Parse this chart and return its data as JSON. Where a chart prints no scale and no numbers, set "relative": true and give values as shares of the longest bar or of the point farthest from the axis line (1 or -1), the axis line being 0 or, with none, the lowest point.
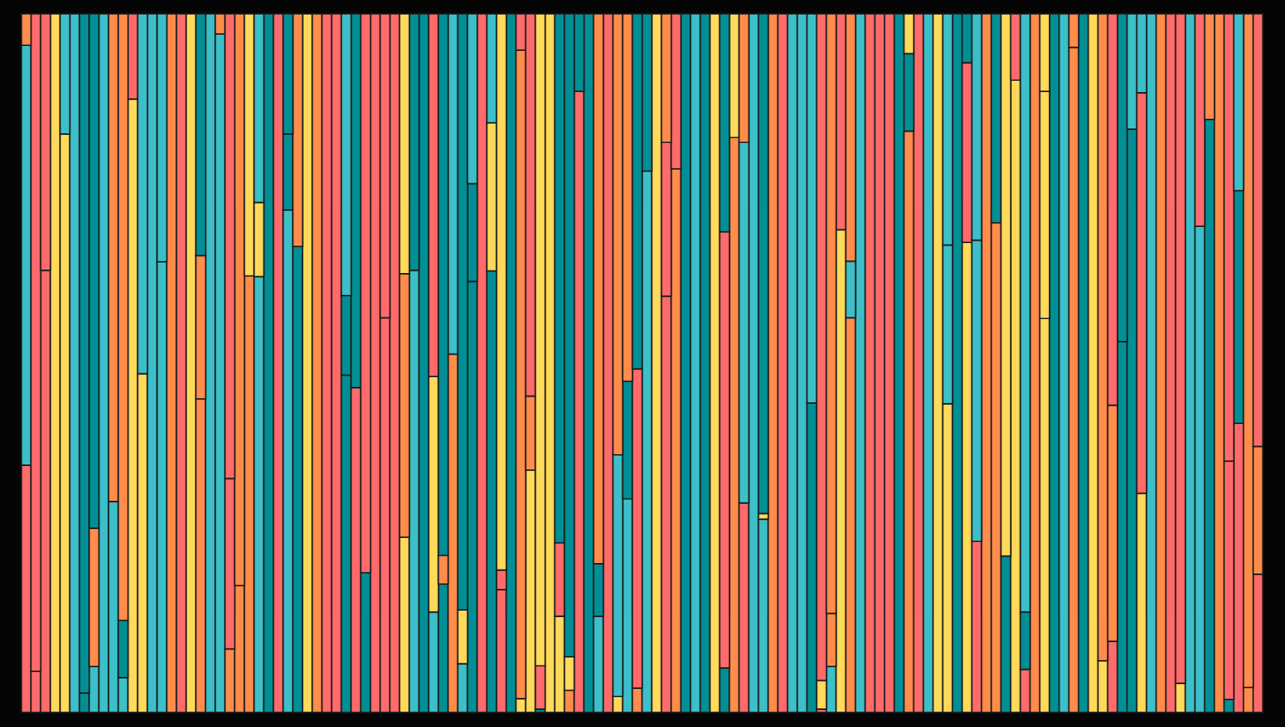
{
  "chart_data": {
    "type": "bar",
    "stacked": true,
    "relative": true,
    "categories": [
      null,
      null,
      null,
      null,
      null,
      null,
      null,
      null,
      null,
      null,
      null,
      null,
      null,
      null,
      null,
      null,
      null,
      null,
      null,
      null,
      null,
      null,
      null,
      null,
      null,
      null,
      null,
      null,
      null,
      null,
      null,
      null,
      null,
      null,
      null,
      null,
      null,
      null,
      null,
      null,
      null,
      null,
      null,
      null,
      null,
      null,
      null,
      null,
      null,
      null,
      null,
      null,
      null,
      null,
      null,
      null,
      null,
      null,
      null,
      null,
      null,
      null,
      null,
      null,
      null,
      null,
      null,
      null,
      null,
      null,
      null,
      null,
      null,
      null,
      null,
      null,
      null,
      null,
      null,
      null,
      null,
      null,
      null,
      null,
      null,
      null,
      null,
      null,
      null,
      null,
      null,
      null,
      null,
      null,
      null,
      null,
      null,
      null,
      null,
      null,
      null,
      null,
      null,
      null,
      null,
      null,
      null,
      null,
      null,
      null,
      null,
      null,
      null,
      null,
      null,
      null,
      null,
      null,
      null,
      null,
      null,
      null,
      null,
      null,
      null,
      null,
      null,
      null
    ],
    "series": [
      {
        "values": [
          0.354,
          0.059,
          0.633,
          1,
          0.828,
          1,
          0.028,
          0.066,
          1,
          0.302,
          0.05,
          0.878,
          0.485,
          1,
          0.645,
          1,
          1,
          1,
          0.449,
          1,
          0.971,
          0.091,
          0.182,
          0.625,
          0.624,
          1,
          1,
          0.719,
          0.667,
          1,
          1,
          1,
          1,
          0.483,
          0.465,
          0.2,
          1,
          0.565,
          1,
          0.251,
          0.633,
          1,
          0.144,
          0.184,
          0.513,
          0.07,
          0.617,
          1,
          0.632,
          0.176,
          1,
          0.02,
          0.347,
          0.005,
          1,
          0.138,
          0.032,
          0.889,
          1,
          0.138,
          1,
          0.023,
          0.306,
          0.035,
          0.775,
          1,
          0.596,
          0.778,
          1,
          1,
          1,
          1,
          0.064,
          0.823,
          0.3,
          1,
          0.277,
          1,
          1,
          1,
          1,
          0.443,
          0.005,
          0.066,
          0.691,
          0.565,
          1,
          1,
          1,
          1,
          1,
          0.832,
          1,
          1,
          1,
          0.442,
          1,
          0.673,
          0.245,
          1,
          0.701,
          0.224,
          0.905,
          0.062,
          1,
          0.564,
          1,
          1,
          0.952,
          1,
          1,
          0.074,
          0.102,
          0.531,
          0.835,
          0.314,
          1,
          1,
          1,
          0.042,
          1,
          0.696,
          0.849,
          1,
          0.019,
          0.414,
          0.036,
          0.198
        ],
        "colors": [
          "#ff6b6b",
          "#ff6b6b",
          "#ff6b6b",
          "#ffd95a",
          "#ffd95a",
          "#3cbfc8",
          "#018f95",
          "#3cbfc8",
          "#3cbfc8",
          "#3cbfc8",
          "#3cbfc8",
          "#ffd95a",
          "#ffd95a",
          "#3cbfc8",
          "#3cbfc8",
          "#ff8c4b",
          "#ff6b6b",
          "#ffd95a",
          "#ff8c4b",
          "#3cbfc8",
          "#3cbfc8",
          "#ff8c4b",
          "#ff8c4b",
          "#ff8c4b",
          "#3cbfc8",
          "#018f95",
          "#ff6b6b",
          "#3cbfc8",
          "#018f95",
          "#ffd95a",
          "#ff8c4b",
          "#ff6b6b",
          "#ff6b6b",
          "#018f95",
          "#ff6b6b",
          "#018f95",
          "#ff6b6b",
          "#ff6b6b",
          "#ff6b6b",
          "#ffd95a",
          "#3cbfc8",
          "#018f95",
          "#3cbfc8",
          "#018f95",
          "#ff8c4b",
          "#3cbfc8",
          "#018f95",
          "#ff6b6b",
          "#018f95",
          "#ff6b6b",
          "#018f95",
          "#ffd95a",
          "#ffd95a",
          "#018f95",
          "#ffd95a",
          "#ffd95a",
          "#ff8c4b",
          "#ff6b6b",
          "#018f95",
          "#3cbfc8",
          "#ff6b6b",
          "#ffd95a",
          "#3cbfc8",
          "#ff8c4b",
          "#3cbfc8",
          "#ffd95a",
          "#ff6b6b",
          "#ff8c4b",
          "#018f95",
          "#3cbfc8",
          "#018f95",
          "#ffd95a",
          "#018f95",
          "#ff8c4b",
          "#ff6b6b",
          "#3cbfc8",
          "#3cbfc8",
          "#ff8c4b",
          "#ff6b6b",
          "#3cbfc8",
          "#3cbfc8",
          "#018f95",
          "#ff6b6b",
          "#3cbfc8",
          "#ffd95a",
          "#ff8c4b",
          "#3cbfc8",
          "#ff6b6b",
          "#ff6b6b",
          "#ff6b6b",
          "#018f95",
          "#ff8c4b",
          "#ff6b6b",
          "#3cbfc8",
          "#ffd95a",
          "#ffd95a",
          "#018f95",
          "#ffd95a",
          "#ff6b6b",
          "#ff8c4b",
          "#ff8c4b",
          "#018f95",
          "#ffd95a",
          "#ff6b6b",
          "#ff8c4b",
          "#ffd95a",
          "#018f95",
          "#3cbfc8",
          "#ff8c4b",
          "#018f95",
          "#ffd95a",
          "#ffd95a",
          "#ff6b6b",
          "#018f95",
          "#018f95",
          "#ffd95a",
          "#3cbfc8",
          "#ff8c4b",
          "#ff6b6b",
          "#ffd95a",
          "#3cbfc8",
          "#3cbfc8",
          "#018f95",
          "#ff8c4b",
          "#018f95",
          "#ff6b6b",
          "#ff8c4b",
          "#ff6b6b"
        ]
      },
      {
        "values": [
          0.601,
          0.941,
          0.367,
          null,
          0.172,
          null,
          0.972,
          0.198,
          null,
          0.698,
          0.082,
          0.122,
          0.515,
          null,
          0.355,
          null,
          null,
          null,
          0.205,
          null,
          0.029,
          0.244,
          0.818,
          0.375,
          0.106,
          null,
          null,
          0.109,
          0.333,
          null,
          null,
          null,
          null,
          0.114,
          0.535,
          0.8,
          null,
          0.435,
          null,
          0.377,
          0.367,
          null,
          0.337,
          0.041,
          0.487,
          0.077,
          0.14,
          null,
          0.212,
          0.028,
          null,
          0.928,
          0.106,
          0.062,
          null,
          0.105,
          0.048,
          0.111,
          null,
          0.075,
          null,
          0.346,
          0.168,
          0.457,
          0.225,
          null,
          0.22,
          0.222,
          null,
          null,
          null,
          null,
          0.624,
          0.177,
          0.516,
          null,
          0.008,
          null,
          null,
          null,
          null,
          0.557,
          0.041,
          0.076,
          0.309,
          0.081,
          null,
          null,
          null,
          null,
          null,
          0.111,
          null,
          null,
          null,
          0.227,
          null,
          0.257,
          0.431,
          null,
          0.299,
          0.776,
          0.095,
          0.082,
          null,
          0.325,
          null,
          null,
          0.048,
          null,
          null,
          0.926,
          0.338,
          0.469,
          0.165,
          0.573,
          null,
          null,
          null,
          0.958,
          null,
          0.304,
          0.151,
          null,
          0.341,
          0.333,
          0.964,
          0.183
        ],
        "colors": [
          "#3cbfc8",
          "#ff6b6b",
          "#ff6b6b",
          null,
          "#3cbfc8",
          null,
          "#018f95",
          "#ff8c4b",
          null,
          "#ff8c4b",
          "#018f95",
          "#ff6b6b",
          "#3cbfc8",
          null,
          "#3cbfc8",
          null,
          null,
          null,
          "#ff8c4b",
          null,
          "#ff8c4b",
          "#ff6b6b",
          "#ff8c4b",
          "#ffd95a",
          "#ffd95a",
          null,
          null,
          "#018f95",
          "#ff8c4b",
          null,
          null,
          null,
          null,
          "#018f95",
          "#018f95",
          "#ff6b6b",
          null,
          "#ff6b6b",
          null,
          "#ff8c4b",
          "#018f95",
          null,
          "#ffd95a",
          "#ff8c4b",
          "#3cbfc8",
          "#ffd95a",
          "#018f95",
          null,
          "#ffd95a",
          "#ff6b6b",
          null,
          "#ff8c4b",
          "#ff8c4b",
          "#ff6b6b",
          null,
          "#ff6b6b",
          "#ffd95a",
          "#018f95",
          null,
          "#018f95",
          null,
          "#3cbfc8",
          "#018f95",
          "#ff6b6b",
          "#018f95",
          null,
          "#ff6b6b",
          "#ff6b6b",
          null,
          null,
          null,
          null,
          "#ff6b6b",
          "#ffd95a",
          "#3cbfc8",
          null,
          "#ffd95a",
          null,
          null,
          null,
          null,
          "#3cbfc8",
          "#ffd95a",
          "#ff8c4b",
          "#ff6b6b",
          "#3cbfc8",
          null,
          null,
          null,
          null,
          null,
          "#018f95",
          null,
          null,
          null,
          "#3cbfc8",
          null,
          "#ff6b6b",
          "#3cbfc8",
          null,
          "#018f95",
          "#ffd95a",
          "#ff6b6b",
          "#018f95",
          null,
          "#ffd95a",
          null,
          null,
          "#ff8c4b",
          null,
          null,
          "#ff8c4b",
          "#ff8c4b",
          "#018f95",
          "#3cbfc8",
          "#ff6b6b",
          null,
          null,
          null,
          "#ff6b6b",
          null,
          "#ff6b6b",
          "#ff8c4b",
          null,
          "#ff6b6b",
          "#018f95",
          "#ff8c4b",
          "#ff8c4b"
        ]
      },
      {
        "values": [
          0.045,
          null,
          null,
          null,
          null,
          null,
          null,
          0.736,
          null,
          null,
          0.868,
          null,
          null,
          null,
          null,
          null,
          null,
          null,
          0.346,
          null,
          null,
          0.665,
          null,
          null,
          0.27,
          null,
          null,
          0.172,
          null,
          null,
          null,
          null,
          null,
          0.403,
          null,
          null,
          null,
          null,
          null,
          0.372,
          null,
          null,
          0.519,
          0.775,
          null,
          0.853,
          0.243,
          null,
          0.156,
          0.796,
          null,
          0.052,
          0.547,
          0.933,
          null,
          0.757,
          0.92,
          null,
          null,
          0.787,
          null,
          0.631,
          0.526,
          0.508,
          null,
          null,
          0.184,
          null,
          null,
          null,
          null,
          null,
          0.312,
          null,
          0.184,
          null,
          0.715,
          null,
          null,
          null,
          null,
          null,
          0.954,
          0.858,
          null,
          0.354,
          null,
          null,
          null,
          null,
          null,
          0.057,
          null,
          null,
          null,
          0.331,
          null,
          0.07,
          0.324,
          null,
          null,
          null,
          null,
          0.856,
          null,
          0.111,
          null,
          null,
          null,
          null,
          null,
          null,
          0.56,
          null,
          null,
          0.113,
          null,
          null,
          null,
          null,
          null,
          null,
          null,
          null,
          0.64,
          0.253,
          null,
          0.619
        ],
        "colors": [
          "#ff8c4b",
          null,
          null,
          null,
          null,
          null,
          null,
          "#018f95",
          null,
          null,
          "#ff8c4b",
          null,
          null,
          null,
          null,
          null,
          null,
          null,
          "#018f95",
          null,
          null,
          "#ff6b6b",
          null,
          null,
          "#3cbfc8",
          null,
          null,
          "#018f95",
          null,
          null,
          null,
          null,
          null,
          "#3cbfc8",
          null,
          null,
          null,
          null,
          null,
          "#ffd95a",
          null,
          null,
          "#ff6b6b",
          "#018f95",
          null,
          "#018f95",
          "#3cbfc8",
          null,
          "#3cbfc8",
          "#ffd95a",
          null,
          "#ff6b6b",
          "#ff6b6b",
          "#ffd95a",
          null,
          "#018f95",
          "#018f95",
          null,
          null,
          "#ff8c4b",
          null,
          "#ff8c4b",
          "#ff8c4b",
          "#018f95",
          null,
          null,
          "#ff8c4b",
          null,
          null,
          null,
          null,
          null,
          "#018f95",
          null,
          "#ff8c4b",
          null,
          "#018f95",
          null,
          null,
          null,
          null,
          null,
          "#ff6b6b",
          "#ff8c4b",
          null,
          "#ff8c4b",
          null,
          null,
          null,
          null,
          null,
          "#ffd95a",
          null,
          null,
          null,
          "#3cbfc8",
          null,
          "#018f95",
          "#3cbfc8",
          null,
          null,
          null,
          null,
          "#3cbfc8",
          null,
          "#ffd95a",
          null,
          null,
          null,
          null,
          null,
          null,
          "#ff6b6b",
          null,
          null,
          "#3cbfc8",
          null,
          null,
          null,
          null,
          null,
          null,
          null,
          null,
          "#ff6b6b",
          "#3cbfc8",
          null,
          "#ff6b6b"
        ]
      }
    ]
  }
}
